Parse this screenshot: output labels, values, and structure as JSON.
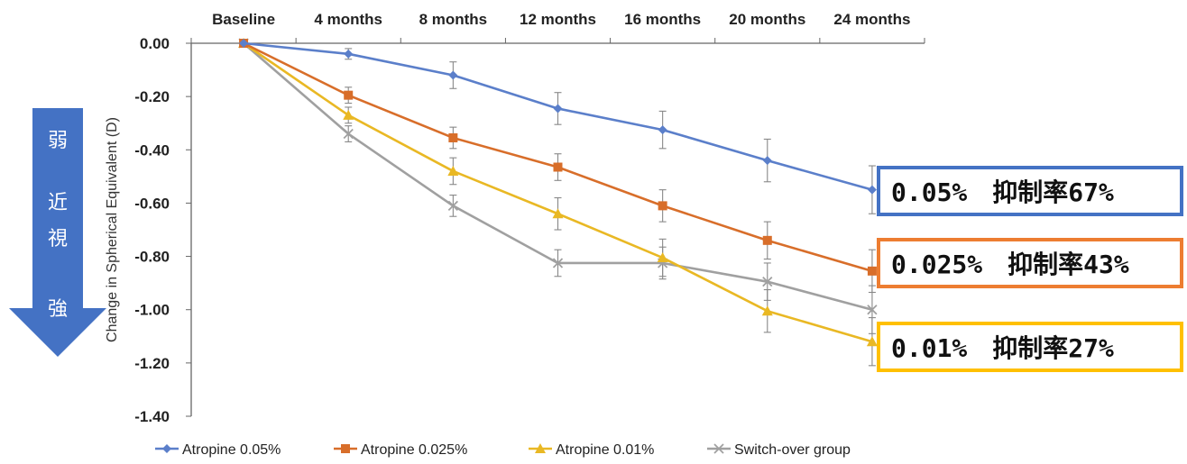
{
  "chart_data": {
    "type": "line",
    "categories": [
      "Baseline",
      "4 months",
      "8 months",
      "12 months",
      "16 months",
      "20 months",
      "24 months"
    ],
    "ylabel": "Change in Spherical Equivalent (D)",
    "ylim": [
      -1.4,
      0.0
    ],
    "yticks": [
      "0.00",
      "-0.20",
      "-0.40",
      "-0.60",
      "-0.80",
      "-1.00",
      "-1.20",
      "-1.40"
    ],
    "legend_position": "bottom",
    "series": [
      {
        "name": "Atropine 0.05%",
        "color": "#5b7fca",
        "marker": "diamond",
        "values": [
          0.0,
          -0.04,
          -0.12,
          -0.245,
          -0.325,
          -0.44,
          -0.55
        ],
        "errors": [
          0.0,
          0.02,
          0.05,
          0.06,
          0.07,
          0.08,
          0.09
        ]
      },
      {
        "name": "Atropine 0.025%",
        "color": "#d86e2a",
        "marker": "square",
        "values": [
          0.0,
          -0.195,
          -0.355,
          -0.465,
          -0.61,
          -0.74,
          -0.855
        ],
        "errors": [
          0.0,
          0.03,
          0.04,
          0.05,
          0.06,
          0.07,
          0.08
        ]
      },
      {
        "name": "Atropine 0.01%",
        "color": "#e9b824",
        "marker": "triangle",
        "values": [
          0.0,
          -0.27,
          -0.48,
          -0.64,
          -0.805,
          -1.005,
          -1.12
        ],
        "errors": [
          0.0,
          0.03,
          0.05,
          0.06,
          0.07,
          0.08,
          0.09
        ]
      },
      {
        "name": "Switch-over group",
        "color": "#a0a0a0",
        "marker": "x",
        "values": [
          0.0,
          -0.34,
          -0.61,
          -0.825,
          -0.825,
          -0.895,
          -1.0
        ],
        "errors": [
          0.0,
          0.03,
          0.04,
          0.05,
          0.06,
          0.07,
          0.09
        ]
      }
    ]
  },
  "arrow": {
    "label_top": "弱",
    "label_mid": "近視",
    "label_bottom": "強",
    "color": "#4472c4"
  },
  "callouts": [
    {
      "text": "0.05%　抑制率67%",
      "color": "#4472c4"
    },
    {
      "text": "0.025%　抑制率43%",
      "color": "#ed7d31"
    },
    {
      "text": "0.01%　抑制率27%",
      "color": "#ffc000"
    }
  ]
}
